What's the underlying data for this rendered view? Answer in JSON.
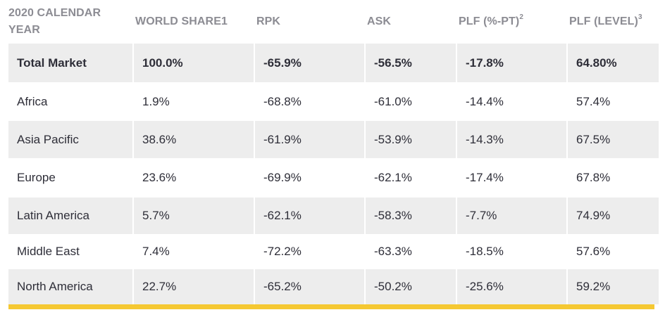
{
  "headers": [
    {
      "label": "2020 CALENDAR YEAR",
      "sup": ""
    },
    {
      "label": "WORLD SHARE1",
      "sup": ""
    },
    {
      "label": "RPK",
      "sup": ""
    },
    {
      "label": "ASK",
      "sup": ""
    },
    {
      "label": "PLF (%-PT)",
      "sup": "2"
    },
    {
      "label": "PLF (LEVEL)",
      "sup": "3"
    }
  ],
  "rows": [
    {
      "cells": [
        "Total Market",
        "100.0%",
        "-65.9%",
        "-56.5%",
        "-17.8%",
        "64.80%"
      ]
    },
    {
      "cells": [
        "Africa",
        "1.9%",
        "-68.8%",
        "-61.0%",
        "-14.4%",
        "57.4%"
      ]
    },
    {
      "cells": [
        "Asia Pacific",
        "38.6%",
        "-61.9%",
        "-53.9%",
        "-14.3%",
        "67.5%"
      ]
    },
    {
      "cells": [
        "Europe",
        "23.6%",
        "-69.9%",
        "-62.1%",
        "-17.4%",
        "67.8%"
      ]
    },
    {
      "cells": [
        "Latin America",
        "5.7%",
        "-62.1%",
        "-58.3%",
        "-7.7%",
        "74.9%"
      ]
    },
    {
      "cells": [
        "Middle East",
        "7.4%",
        "-72.2%",
        "-63.3%",
        "-18.5%",
        "57.6%"
      ]
    },
    {
      "cells": [
        "North America",
        "22.7%",
        "-65.2%",
        "-50.2%",
        "-25.6%",
        "59.2%"
      ]
    }
  ],
  "colors": {
    "header_text": "#8c8c93",
    "body_text": "#2e2e38",
    "row_shade": "#ededed",
    "accent_bar": "#f5c832"
  }
}
